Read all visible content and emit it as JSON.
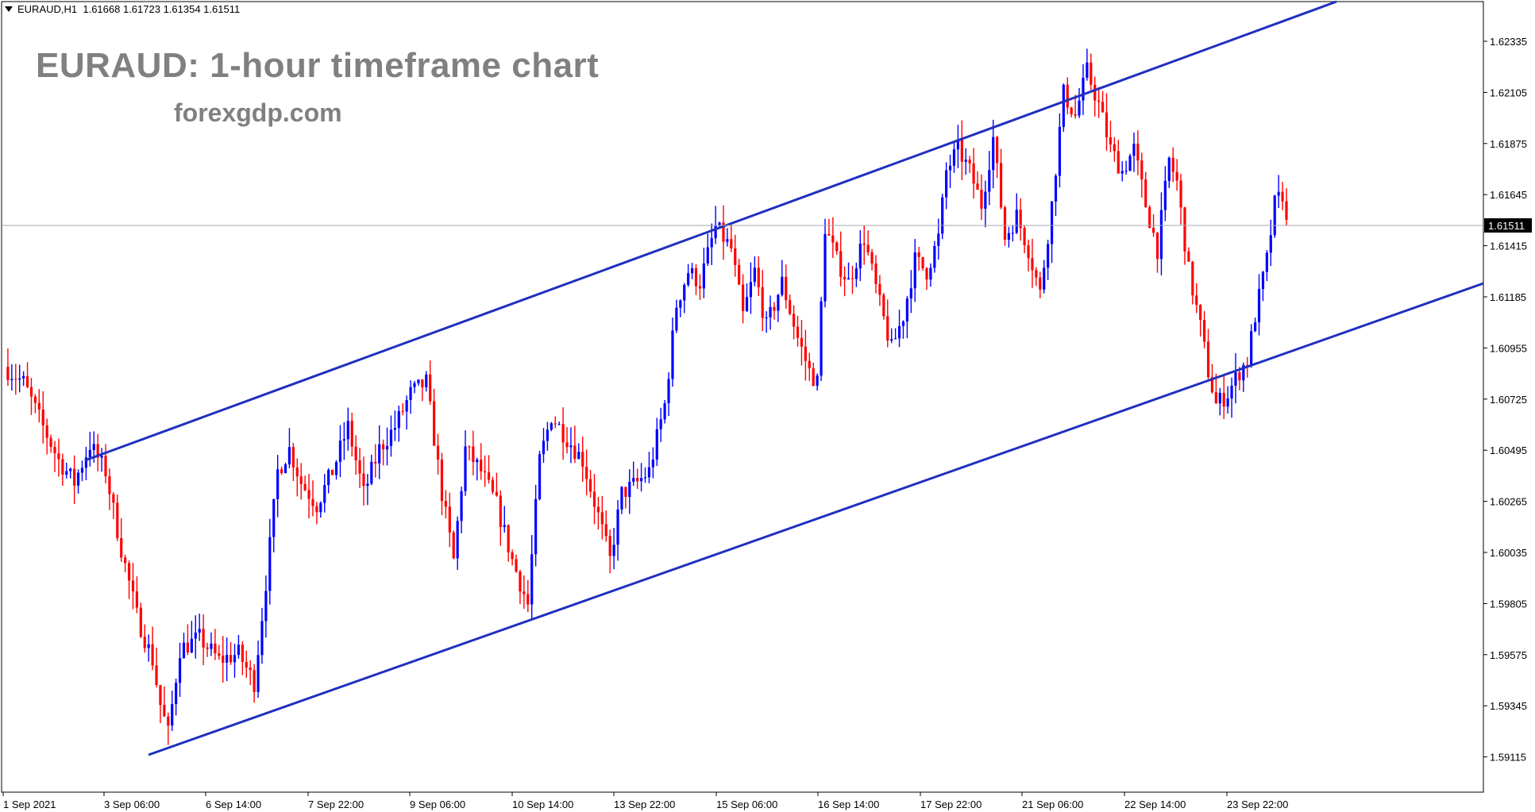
{
  "header": {
    "symbol": "EURAUD,H1",
    "ohlc": "1.61668 1.61723 1.61354 1.61511"
  },
  "overlay": {
    "title": "EURAUD: 1-hour timeframe chart",
    "site": "forexgdp.com"
  },
  "colors": {
    "background": "#ffffff",
    "bull": "#0000ff",
    "bear": "#ff0000",
    "trendline": "#1f2fbf",
    "axis": "#000000",
    "price_line": "#a0a8b0",
    "price_label_bg": "#000000"
  },
  "chart_data": {
    "type": "candlestick",
    "symbol": "EURAUD",
    "timeframe": "H1",
    "y_ticks": [
      "1.62335",
      "1.62105",
      "1.61875",
      "1.61645",
      "1.61415",
      "1.61185",
      "1.60955",
      "1.60725",
      "1.60495",
      "1.60265",
      "1.60035",
      "1.59805",
      "1.59575",
      "1.59345",
      "1.59115"
    ],
    "ylim": [
      1.6088,
      1.62335
    ],
    "x_ticks": [
      "1 Sep 2021",
      "3 Sep 06:00",
      "6 Sep 14:00",
      "7 Sep 22:00",
      "9 Sep 06:00",
      "10 Sep 14:00",
      "13 Sep 22:00",
      "15 Sep 06:00",
      "16 Sep 14:00",
      "17 Sep 22:00",
      "21 Sep 06:00",
      "22 Sep 14:00",
      "23 Sep 22:00"
    ],
    "current_price": "1.61511",
    "trend_points": [
      [
        0,
        1.6087
      ],
      [
        5,
        1.608
      ],
      [
        10,
        1.606
      ],
      [
        14,
        1.6045
      ],
      [
        18,
        1.6035
      ],
      [
        22,
        1.6052
      ],
      [
        26,
        1.604
      ],
      [
        30,
        1.6005
      ],
      [
        34,
        1.5975
      ],
      [
        38,
        1.5955
      ],
      [
        40,
        1.5935
      ],
      [
        42,
        1.5922
      ],
      [
        45,
        1.596
      ],
      [
        50,
        1.5965
      ],
      [
        55,
        1.5955
      ],
      [
        60,
        1.5958
      ],
      [
        64,
        1.5945
      ],
      [
        67,
        1.599
      ],
      [
        70,
        1.604
      ],
      [
        73,
        1.605
      ],
      [
        76,
        1.6035
      ],
      [
        80,
        1.6025
      ],
      [
        84,
        1.604
      ],
      [
        88,
        1.606
      ],
      [
        92,
        1.603
      ],
      [
        96,
        1.605
      ],
      [
        100,
        1.606
      ],
      [
        104,
        1.6075
      ],
      [
        108,
        1.608
      ],
      [
        112,
        1.603
      ],
      [
        115,
        1.6
      ],
      [
        118,
        1.605
      ],
      [
        122,
        1.604
      ],
      [
        126,
        1.6025
      ],
      [
        130,
        1.6
      ],
      [
        134,
        1.598
      ],
      [
        137,
        1.6045
      ],
      [
        140,
        1.6065
      ],
      [
        144,
        1.6055
      ],
      [
        148,
        1.6045
      ],
      [
        152,
        1.602
      ],
      [
        155,
        1.6
      ],
      [
        158,
        1.603
      ],
      [
        162,
        1.6035
      ],
      [
        165,
        1.604
      ],
      [
        169,
        1.607
      ],
      [
        172,
        1.6115
      ],
      [
        175,
        1.613
      ],
      [
        178,
        1.6125
      ],
      [
        182,
        1.615
      ],
      [
        186,
        1.614
      ],
      [
        189,
        1.611
      ],
      [
        192,
        1.613
      ],
      [
        195,
        1.6105
      ],
      [
        199,
        1.6125
      ],
      [
        203,
        1.61
      ],
      [
        206,
        1.6085
      ],
      [
        208,
        1.608
      ],
      [
        210,
        1.615
      ],
      [
        213,
        1.6135
      ],
      [
        216,
        1.6125
      ],
      [
        220,
        1.6145
      ],
      [
        224,
        1.6115
      ],
      [
        227,
        1.6095
      ],
      [
        230,
        1.611
      ],
      [
        233,
        1.6135
      ],
      [
        236,
        1.613
      ],
      [
        239,
        1.6145
      ],
      [
        241,
        1.6175
      ],
      [
        244,
        1.6185
      ],
      [
        247,
        1.6175
      ],
      [
        250,
        1.616
      ],
      [
        253,
        1.619
      ],
      [
        256,
        1.6145
      ],
      [
        259,
        1.6155
      ],
      [
        262,
        1.614
      ],
      [
        265,
        1.612
      ],
      [
        268,
        1.616
      ],
      [
        271,
        1.621
      ],
      [
        274,
        1.62
      ],
      [
        277,
        1.622
      ],
      [
        280,
        1.6205
      ],
      [
        283,
        1.6185
      ],
      [
        286,
        1.6175
      ],
      [
        289,
        1.6185
      ],
      [
        292,
        1.616
      ],
      [
        295,
        1.614
      ],
      [
        298,
        1.618
      ],
      [
        300,
        1.617
      ],
      [
        303,
        1.613
      ],
      [
        306,
        1.6105
      ],
      [
        308,
        1.6085
      ],
      [
        310,
        1.607
      ],
      [
        313,
        1.6075
      ],
      [
        316,
        1.6085
      ],
      [
        318,
        1.609
      ],
      [
        320,
        1.611
      ],
      [
        323,
        1.6135
      ],
      [
        325,
        1.616
      ],
      [
        327,
        1.6165
      ],
      [
        328,
        1.6151
      ]
    ]
  }
}
